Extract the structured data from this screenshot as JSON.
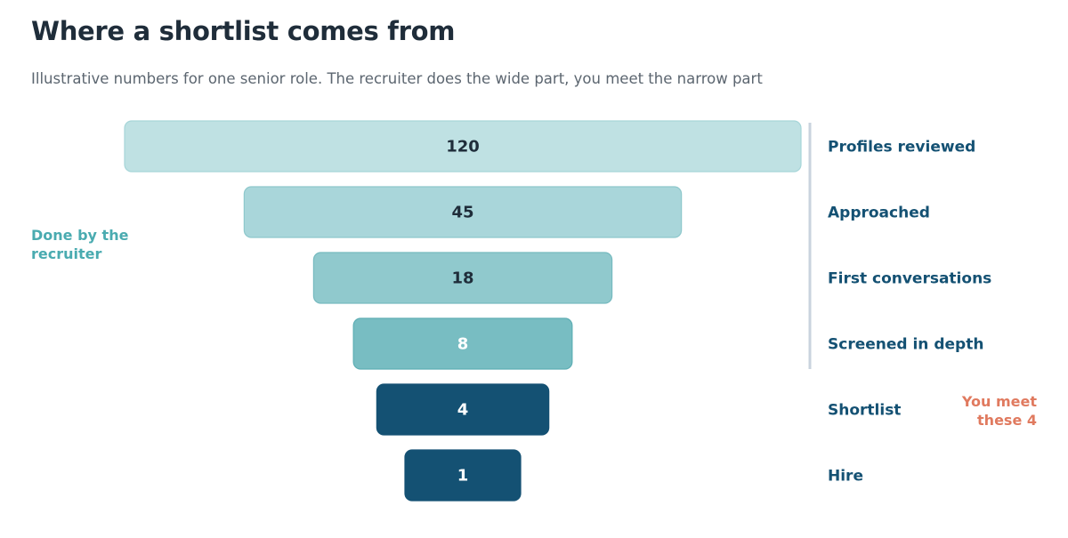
{
  "title": "Where a shortlist comes from",
  "subtitle": "Illustrative numbers for one senior role. The recruiter does the wide part, you meet the narrow part",
  "annotations": {
    "recruiter_note": "Done by the recruiter",
    "you_meet_note": "You meet these 4"
  },
  "chart_data": {
    "type": "funnel",
    "stages": [
      {
        "label": "Profiles reviewed",
        "value": 120,
        "group": "recruiter"
      },
      {
        "label": "Approached",
        "value": 45,
        "group": "recruiter"
      },
      {
        "label": "First conversations",
        "value": 18,
        "group": "recruiter"
      },
      {
        "label": "Screened in depth",
        "value": 8,
        "group": "recruiter"
      },
      {
        "label": "Shortlist",
        "value": 4,
        "group": "you"
      },
      {
        "label": "Hire",
        "value": 1,
        "group": "you"
      }
    ]
  }
}
